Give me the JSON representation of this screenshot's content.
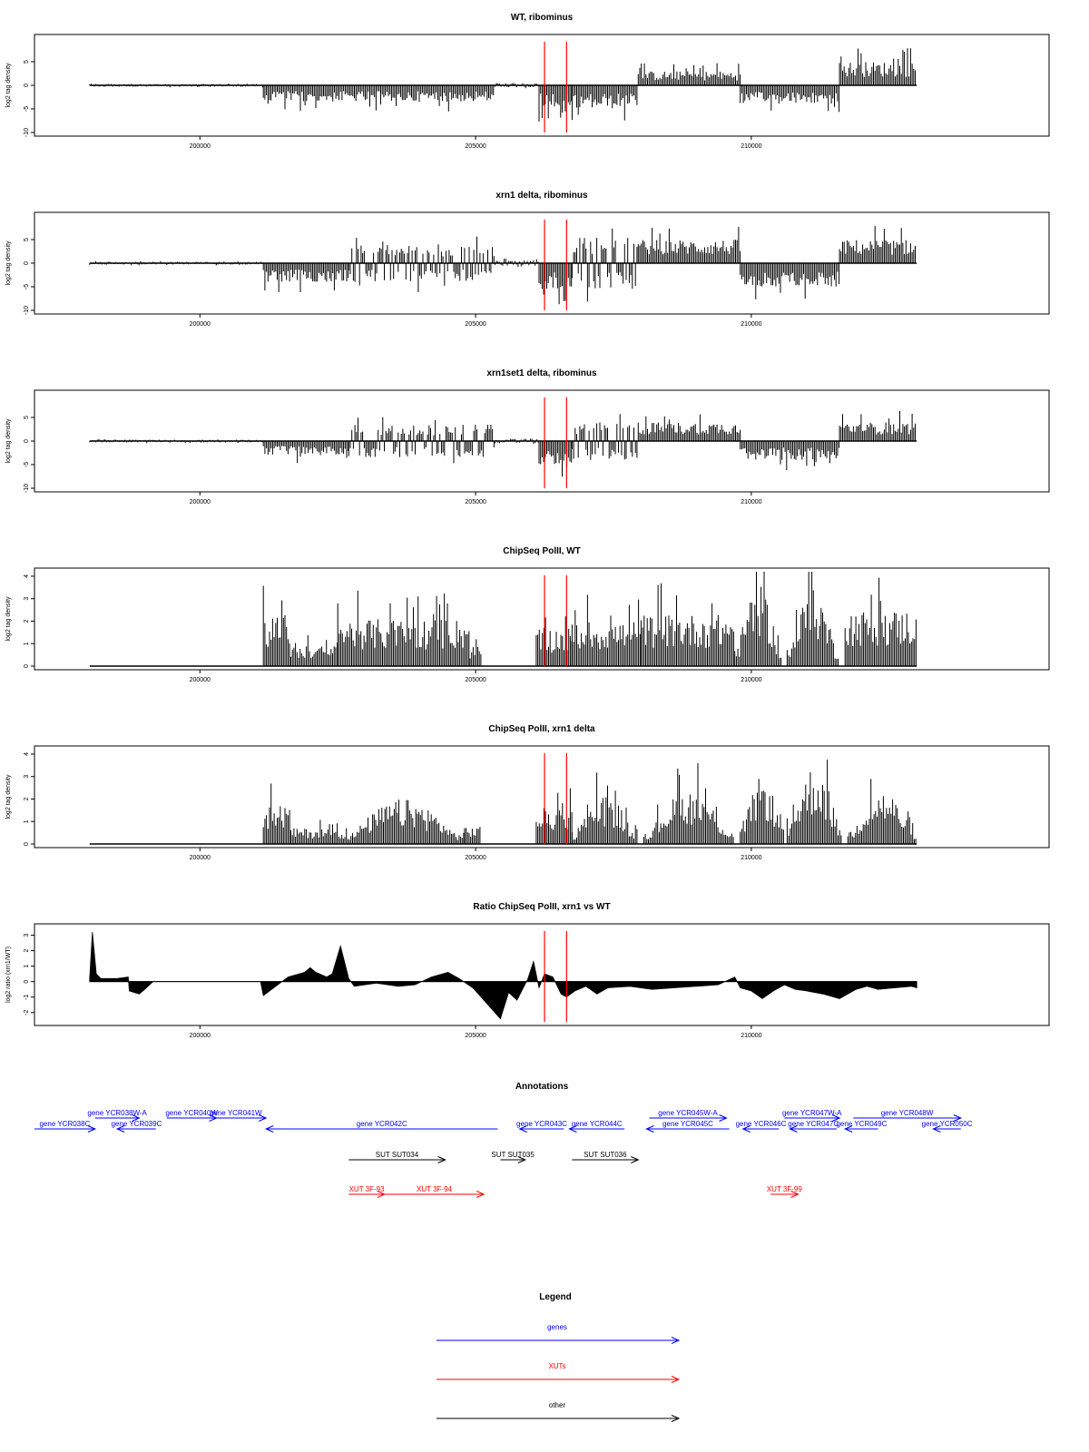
{
  "colors": {
    "genes": "#0000ff",
    "xuts": "#ff0000",
    "other": "#000000",
    "marker": "#ff0000",
    "bars": "#000000"
  },
  "chart_data": [
    {
      "type": "bar",
      "title": "WT, ribominus",
      "ylabel": "log2 tag density",
      "xlim": [
        197000,
        215400
      ],
      "ylim": [
        -10,
        10
      ],
      "yticks": [
        -10,
        -5,
        0,
        5
      ],
      "xticks": [
        200000,
        205000,
        210000
      ],
      "markers": [
        206250,
        206650
      ],
      "data_range": [
        198000,
        213000
      ],
      "segments": [
        {
          "from": 198000,
          "to": 201150,
          "sign": 0,
          "amp": 0.3
        },
        {
          "from": 201150,
          "to": 205350,
          "sign": -1,
          "amp": 3.5
        },
        {
          "from": 205350,
          "to": 206150,
          "sign": 0,
          "amp": 0.5
        },
        {
          "from": 206150,
          "to": 206750,
          "sign": -1,
          "amp": 5
        },
        {
          "from": 206750,
          "to": 207950,
          "sign": -1,
          "amp": 5
        },
        {
          "from": 207950,
          "to": 209800,
          "sign": 1,
          "amp": 3
        },
        {
          "from": 209800,
          "to": 211600,
          "sign": -1,
          "amp": 4
        },
        {
          "from": 211600,
          "to": 213000,
          "sign": 1,
          "amp": 5
        }
      ]
    },
    {
      "type": "bar",
      "title": "xrn1 delta, ribominus",
      "ylabel": "log2 tag density",
      "xlim": [
        197000,
        215400
      ],
      "ylim": [
        -10,
        10
      ],
      "yticks": [
        -10,
        -5,
        0,
        5
      ],
      "xticks": [
        200000,
        205000,
        210000
      ],
      "markers": [
        206250,
        206650
      ],
      "data_range": [
        198000,
        213000
      ],
      "segments": [
        {
          "from": 198000,
          "to": 201150,
          "sign": 0,
          "amp": 0.3
        },
        {
          "from": 201150,
          "to": 202700,
          "sign": -1,
          "amp": 4
        },
        {
          "from": 202700,
          "to": 205350,
          "sign": 0,
          "amp": 4
        },
        {
          "from": 205350,
          "to": 206150,
          "sign": 0,
          "amp": 0.6
        },
        {
          "from": 206150,
          "to": 206750,
          "sign": -1,
          "amp": 5.5
        },
        {
          "from": 206750,
          "to": 207950,
          "sign": 0,
          "amp": 5.5
        },
        {
          "from": 207950,
          "to": 209800,
          "sign": 1,
          "amp": 5
        },
        {
          "from": 209800,
          "to": 211600,
          "sign": -1,
          "amp": 5
        },
        {
          "from": 211600,
          "to": 213000,
          "sign": 1,
          "amp": 5
        }
      ]
    },
    {
      "type": "bar",
      "title": "xrn1set1 delta, ribominus",
      "ylabel": "log2 tag density",
      "xlim": [
        197000,
        215400
      ],
      "ylim": [
        -10,
        10
      ],
      "yticks": [
        -10,
        -5,
        0,
        5
      ],
      "xticks": [
        200000,
        205000,
        210000
      ],
      "markers": [
        206250,
        206650
      ],
      "data_range": [
        198000,
        213000
      ],
      "segments": [
        {
          "from": 198000,
          "to": 201150,
          "sign": 0,
          "amp": 0.3
        },
        {
          "from": 201150,
          "to": 202700,
          "sign": -1,
          "amp": 3
        },
        {
          "from": 202700,
          "to": 205350,
          "sign": 0,
          "amp": 3.5
        },
        {
          "from": 205350,
          "to": 206150,
          "sign": 0,
          "amp": 0.5
        },
        {
          "from": 206150,
          "to": 206750,
          "sign": -1,
          "amp": 5
        },
        {
          "from": 206750,
          "to": 207950,
          "sign": 0,
          "amp": 4
        },
        {
          "from": 207950,
          "to": 209800,
          "sign": 1,
          "amp": 4
        },
        {
          "from": 209800,
          "to": 211600,
          "sign": -1,
          "amp": 4
        },
        {
          "from": 211600,
          "to": 213000,
          "sign": 1,
          "amp": 4
        }
      ]
    },
    {
      "type": "bar",
      "title": "ChipSeq PolII, WT",
      "ylabel": "log2 tag density",
      "xlim": [
        197000,
        215400
      ],
      "ylim": [
        0,
        4.2
      ],
      "yticks": [
        0,
        1,
        2,
        3,
        4
      ],
      "xticks": [
        200000,
        205000,
        210000
      ],
      "markers": [
        206250,
        206650
      ],
      "data_range": [
        198000,
        213000
      ],
      "segments": [
        {
          "from": 198000,
          "to": 201150,
          "sign": 0,
          "amp": 0
        },
        {
          "from": 201150,
          "to": 201650,
          "sign": 1,
          "amp": 2.3
        },
        {
          "from": 201650,
          "to": 202500,
          "sign": 1,
          "amp": 0.9
        },
        {
          "from": 202500,
          "to": 204900,
          "sign": 1,
          "amp": 2.1
        },
        {
          "from": 204900,
          "to": 205100,
          "sign": 1,
          "amp": 0.9
        },
        {
          "from": 206100,
          "to": 206750,
          "sign": 1,
          "amp": 1.7
        },
        {
          "from": 206750,
          "to": 208000,
          "sign": 1,
          "amp": 2
        },
        {
          "from": 208000,
          "to": 209700,
          "sign": 1,
          "amp": 2.3
        },
        {
          "from": 209700,
          "to": 210550,
          "sign": 1,
          "amp": 3.6,
          "hump": true
        },
        {
          "from": 210650,
          "to": 211600,
          "sign": 1,
          "amp": 3.4,
          "hump": true
        },
        {
          "from": 211700,
          "to": 213000,
          "sign": 1,
          "amp": 2.5
        }
      ]
    },
    {
      "type": "bar",
      "title": "ChipSeq PolII, xrn1 delta",
      "ylabel": "log2 tag density",
      "xlim": [
        197000,
        215400
      ],
      "ylim": [
        0,
        4.2
      ],
      "yticks": [
        0,
        1,
        2,
        3,
        4
      ],
      "xticks": [
        200000,
        205000,
        210000
      ],
      "markers": [
        206250,
        206650
      ],
      "data_range": [
        198000,
        213000
      ],
      "segments": [
        {
          "from": 198000,
          "to": 201150,
          "sign": 0,
          "amp": 0
        },
        {
          "from": 201150,
          "to": 201650,
          "sign": 1,
          "amp": 1.8
        },
        {
          "from": 201650,
          "to": 202600,
          "sign": 1,
          "amp": 0.7
        },
        {
          "from": 202600,
          "to": 204800,
          "sign": 1,
          "amp": 2,
          "hump": true
        },
        {
          "from": 204800,
          "to": 205100,
          "sign": 1,
          "amp": 0.8
        },
        {
          "from": 206100,
          "to": 206750,
          "sign": 1,
          "amp": 1.6
        },
        {
          "from": 206750,
          "to": 207950,
          "sign": 1,
          "amp": 2.2,
          "hump": true
        },
        {
          "from": 208050,
          "to": 209700,
          "sign": 1,
          "amp": 2.4,
          "hump": true
        },
        {
          "from": 209800,
          "to": 210600,
          "sign": 1,
          "amp": 3.0,
          "hump": true
        },
        {
          "from": 210650,
          "to": 211650,
          "sign": 1,
          "amp": 3.5,
          "hump": true
        },
        {
          "from": 211750,
          "to": 213000,
          "sign": 1,
          "amp": 2.4,
          "hump": true
        }
      ]
    },
    {
      "type": "area",
      "title": "Ratio ChipSeq PolII, xrn1 vs WT",
      "ylabel": "log2 ratio (xrn1/WT)",
      "xlim": [
        197000,
        215400
      ],
      "ylim": [
        -2.6,
        3.5
      ],
      "yticks": [
        -2,
        -1,
        0,
        1,
        2,
        3
      ],
      "xticks": [
        200000,
        205000,
        210000
      ],
      "markers": [
        206250,
        206650
      ],
      "x": [
        198000,
        198050,
        198120,
        198200,
        198500,
        198700,
        198720,
        198900,
        199000,
        199150,
        199200,
        201100,
        201150,
        201600,
        201900,
        202000,
        202100,
        202300,
        202400,
        202550,
        202700,
        202800,
        203200,
        203600,
        203900,
        204200,
        204500,
        204700,
        204950,
        205100,
        205300,
        205450,
        205600,
        205750,
        205850,
        205950,
        206050,
        206150,
        206250,
        206400,
        206550,
        206650,
        206800,
        207000,
        207200,
        207400,
        207800,
        208200,
        208600,
        209000,
        209400,
        209700,
        209800,
        210000,
        210200,
        210400,
        210600,
        210800,
        211000,
        211300,
        211600,
        211900,
        212100,
        212300,
        212600,
        212900,
        213000
      ],
      "values": [
        0.2,
        3.2,
        0.5,
        0.2,
        0.2,
        0.3,
        -0.6,
        -0.8,
        -0.5,
        0,
        0,
        0,
        -0.9,
        0.3,
        0.6,
        0.9,
        0.6,
        0.3,
        0.5,
        2.3,
        0.2,
        -0.3,
        -0.1,
        -0.3,
        -0.2,
        0.3,
        0.6,
        0.2,
        -0.4,
        -1.0,
        -1.8,
        -2.4,
        -0.7,
        -1.2,
        -0.5,
        0.2,
        1.3,
        -0.4,
        0.5,
        0.3,
        -0.8,
        -1.0,
        -0.6,
        -0.3,
        -0.8,
        -0.4,
        -0.3,
        -0.5,
        -0.4,
        -0.3,
        -0.2,
        0.3,
        -0.4,
        -0.6,
        -1.1,
        -0.6,
        -0.2,
        -0.5,
        -0.6,
        -0.8,
        -1.1,
        -0.5,
        -0.3,
        -0.5,
        -0.4,
        -0.3,
        -0.4
      ]
    }
  ],
  "annotations": {
    "title": "Annotations",
    "xlim": [
      197000,
      215400
    ],
    "items": [
      {
        "label": "gene YCR038C",
        "start": 197000,
        "end": 198100,
        "dir": 1,
        "cls": "genes",
        "lane": 1
      },
      {
        "label": "gene YCR038W-A",
        "start": 198100,
        "end": 198900,
        "dir": 1,
        "cls": "genes",
        "lane": 0
      },
      {
        "label": "gene YCR039C",
        "start": 198500,
        "end": 199200,
        "dir": -1,
        "cls": "genes",
        "lane": 1
      },
      {
        "label": "gene YCR040W",
        "start": 199400,
        "end": 200300,
        "dir": 1,
        "cls": "genes",
        "lane": 0
      },
      {
        "label": "gene YCR041W",
        "start": 200100,
        "end": 201200,
        "dir": 1,
        "cls": "genes",
        "lane": 0
      },
      {
        "label": "gene YCR042C",
        "start": 201200,
        "end": 205400,
        "dir": -1,
        "cls": "genes",
        "lane": 1
      },
      {
        "label": "gene YCR043C",
        "start": 205800,
        "end": 206600,
        "dir": -1,
        "cls": "genes",
        "lane": 1
      },
      {
        "label": "gene YCR044C",
        "start": 206700,
        "end": 207700,
        "dir": -1,
        "cls": "genes",
        "lane": 1
      },
      {
        "label": "gene YCR045W-A",
        "start": 208150,
        "end": 209550,
        "dir": 1,
        "cls": "genes",
        "lane": 0
      },
      {
        "label": "gene YCR045C",
        "start": 208100,
        "end": 209600,
        "dir": -1,
        "cls": "genes",
        "lane": 1
      },
      {
        "label": "gene YCR046C",
        "start": 209850,
        "end": 210500,
        "dir": -1,
        "cls": "genes",
        "lane": 1
      },
      {
        "label": "gene YCR047W-A",
        "start": 210600,
        "end": 211600,
        "dir": 1,
        "cls": "genes",
        "lane": 0
      },
      {
        "label": "gene YCR047C",
        "start": 210700,
        "end": 211550,
        "dir": -1,
        "cls": "genes",
        "lane": 1
      },
      {
        "label": "gene YCR048W",
        "start": 211850,
        "end": 213800,
        "dir": 1,
        "cls": "genes",
        "lane": 0
      },
      {
        "label": "gene YCR049C",
        "start": 211700,
        "end": 212300,
        "dir": -1,
        "cls": "genes",
        "lane": 1
      },
      {
        "label": "gene YCR050C",
        "start": 213300,
        "end": 213800,
        "dir": -1,
        "cls": "genes",
        "lane": 1
      },
      {
        "label": "SUT SUT034",
        "start": 202700,
        "end": 204450,
        "dir": 1,
        "cls": "other",
        "lane": 2
      },
      {
        "label": "SUT SUT035",
        "start": 205450,
        "end": 205900,
        "dir": 1,
        "cls": "other",
        "lane": 2
      },
      {
        "label": "SUT SUT036",
        "start": 206750,
        "end": 207950,
        "dir": 1,
        "cls": "other",
        "lane": 2
      },
      {
        "label": "XUT 3F-93",
        "start": 202700,
        "end": 203350,
        "dir": 1,
        "cls": "xuts",
        "lane": 3
      },
      {
        "label": "XUT 3F-94",
        "start": 203350,
        "end": 205150,
        "dir": 1,
        "cls": "xuts",
        "lane": 3
      },
      {
        "label": "XUT 3F-99",
        "start": 210350,
        "end": 210850,
        "dir": 1,
        "cls": "xuts",
        "lane": 3
      }
    ]
  },
  "legend": {
    "title": "Legend",
    "items": [
      {
        "label": "genes",
        "cls": "genes"
      },
      {
        "label": "XUTs",
        "cls": "xuts"
      },
      {
        "label": "other",
        "cls": "other"
      }
    ]
  }
}
